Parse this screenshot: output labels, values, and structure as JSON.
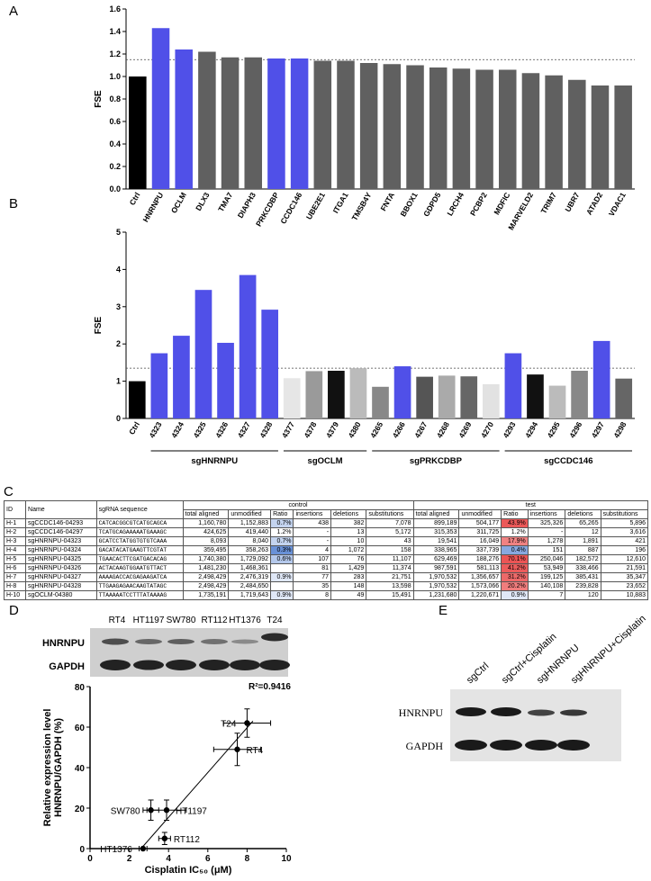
{
  "panel_labels": [
    "A",
    "B",
    "C",
    "D",
    "E"
  ],
  "chart_data": [
    {
      "type": "bar",
      "ylabel": "FSE",
      "categories": [
        "Ctrl",
        "HNRNPU",
        "OCLM",
        "DLX3",
        "TMA7",
        "DIAPH3",
        "PRKCDBP",
        "CCDC146",
        "UBE2E1",
        "ITGA1",
        "TMSB4Y",
        "FNTA",
        "BBOX1",
        "GDPD5",
        "LRCH4",
        "PCBP2",
        "MDFIC",
        "MARVELD2",
        "TRIM7",
        "UBR7",
        "ATAD2",
        "VDAC1"
      ],
      "values": [
        1.0,
        1.43,
        1.24,
        1.22,
        1.17,
        1.17,
        1.16,
        1.16,
        1.14,
        1.14,
        1.12,
        1.11,
        1.1,
        1.08,
        1.07,
        1.06,
        1.06,
        1.03,
        1.01,
        0.97,
        0.92,
        0.92
      ],
      "colors": [
        "#000000",
        "#5050e8",
        "#5050e8",
        "#606060",
        "#606060",
        "#606060",
        "#5050e8",
        "#5050e8",
        "#606060",
        "#606060",
        "#606060",
        "#606060",
        "#606060",
        "#606060",
        "#606060",
        "#606060",
        "#606060",
        "#606060",
        "#606060",
        "#606060",
        "#606060",
        "#606060"
      ],
      "ylim": [
        0,
        1.6
      ],
      "yticks": [
        {
          "value": 0,
          "label": "0.0"
        },
        0.2,
        0.4,
        0.6,
        0.8,
        {
          "value": 1,
          "label": "1.0"
        },
        1.2,
        1.4,
        1.6
      ],
      "reference_line": 1.15
    },
    {
      "type": "bar",
      "ylabel": "FSE",
      "groups": [
        {
          "categories": [
            "Ctrl"
          ],
          "values": [
            1.0
          ],
          "colors": [
            "#000000"
          ]
        },
        {
          "label": "sgHNRNPU",
          "categories": [
            "4323",
            "4324",
            "4325",
            "4326",
            "4327",
            "4328"
          ],
          "values": [
            1.75,
            2.22,
            3.45,
            2.03,
            3.85,
            2.92
          ],
          "colors": [
            "#5050e8",
            "#5050e8",
            "#5050e8",
            "#5050e8",
            "#5050e8",
            "#5050e8"
          ]
        },
        {
          "label": "sgOCLM",
          "categories": [
            "4377",
            "4378",
            "4379",
            "4380"
          ],
          "values": [
            1.08,
            1.27,
            1.28,
            1.35
          ],
          "colors": [
            "#e6e6e6",
            "#9a9a9a",
            "#111111",
            "#bbbbbb"
          ]
        },
        {
          "label": "sgPRKCDBP",
          "categories": [
            "4265",
            "4266",
            "4267",
            "4268",
            "4269",
            "4270"
          ],
          "values": [
            0.85,
            1.4,
            1.12,
            1.15,
            1.13,
            0.92
          ],
          "colors": [
            "#888888",
            "#5050e8",
            "#555555",
            "#aaaaaa",
            "#666666",
            "#e2e2e2"
          ]
        },
        {
          "label": "sgCCDC146",
          "categories": [
            "4293",
            "4294",
            "4295",
            "4296",
            "4297",
            "4298"
          ],
          "values": [
            1.75,
            1.18,
            0.88,
            1.28,
            2.08,
            1.07
          ],
          "colors": [
            "#5050e8",
            "#111111",
            "#bbbbbb",
            "#888888",
            "#5050e8",
            "#666666"
          ]
        }
      ],
      "ylim": [
        0,
        5
      ],
      "yticks": [
        0,
        1,
        2,
        3,
        4,
        5
      ],
      "reference_line": 1.35
    },
    {
      "type": "scatter",
      "xlabel": "Cisplatin IC₅₀ (μM)",
      "ylabel": [
        "Relative expression level",
        "HNRNPU/GAPDH (%)"
      ],
      "labels": [
        "T24",
        "RT4",
        "HT1197",
        "SW780",
        "RT112",
        "HT1376"
      ],
      "x": [
        8.0,
        7.5,
        3.9,
        3.1,
        3.8,
        2.7
      ],
      "values": [
        62,
        49,
        19,
        19,
        5,
        0
      ],
      "x_err": [
        1.2,
        1.2,
        1.0,
        0.4,
        0.3,
        0.2
      ],
      "y_err": [
        7,
        8,
        5,
        5,
        3,
        0
      ],
      "fit_line": {
        "x": [
          2.6,
          8.3
        ],
        "y": [
          0,
          63
        ]
      },
      "annotation": "R²=0.9416",
      "xlim": [
        0,
        10
      ],
      "xticks": [
        0,
        2,
        4,
        6,
        8,
        10
      ],
      "ylim": [
        0,
        80
      ],
      "yticks": [
        0,
        20,
        40,
        60,
        80
      ]
    }
  ],
  "table": {
    "headers": [
      "ID",
      "Name",
      "sgRNA sequence"
    ],
    "groups": [
      "control",
      "test"
    ],
    "subheaders": [
      "total aligned",
      "unmodified",
      "Ratio",
      "insertions",
      "deletions",
      "substitutions"
    ],
    "rows": [
      [
        "H-1",
        "sgCCDC146-04293",
        "CATCACGGCGTCATGCAGCA",
        "1,160,780",
        "1,152,883",
        "0.7%",
        "438",
        "382",
        "7,078",
        "899,189",
        "504,177",
        "43.9%",
        "325,326",
        "65,265",
        "5,896"
      ],
      [
        "H-2",
        "sgCCDC146-04297",
        "TCATGCAGAAAAATGAAAGC",
        "424,625",
        "419,440",
        "1.2%",
        "-",
        "13",
        "5,172",
        "315,353",
        "311,725",
        "1.2%",
        "-",
        "12",
        "3,616"
      ],
      [
        "H-3",
        "sgHNRNPU-04323",
        "GCATCCTATGGTGTGTCAAA",
        "8,093",
        "8,040",
        "0.7%",
        "-",
        "10",
        "43",
        "19,541",
        "16,049",
        "17.9%",
        "1,278",
        "1,891",
        "421"
      ],
      [
        "H-4",
        "sgHNRNPU-04324",
        "GACATACATGAAGTTCGTAT",
        "359,495",
        "358,263",
        "0.3%",
        "4",
        "1,072",
        "158",
        "338,965",
        "337,739",
        "0.4%",
        "151",
        "887",
        "196"
      ],
      [
        "H-5",
        "sgHNRNPU-04325",
        "TGAACACTTCGATGACACAG",
        "1,740,380",
        "1,729,092",
        "0.6%",
        "107",
        "76",
        "11,107",
        "629,469",
        "188,276",
        "70.1%",
        "250,046",
        "182,572",
        "12,610"
      ],
      [
        "H-6",
        "sgHNRNPU-04326",
        "ACTACAAGTGGAATGTTACT",
        "1,481,230",
        "1,468,361",
        null,
        "81",
        "1,429",
        "11,374",
        "987,591",
        "581,113",
        "41.2%",
        "53,949",
        "338,466",
        "21,591"
      ],
      [
        "H-7",
        "sgHNRNPU-04327",
        "AAAAGACCACGAGAAGATCA",
        "2,498,429",
        "2,476,319",
        "0.9%",
        "77",
        "283",
        "21,751",
        "1,970,532",
        "1,356,657",
        "31.2%",
        "199,125",
        "385,431",
        "35,347"
      ],
      [
        "H-8",
        "sgHNRNPU-04328",
        "TTGAAGAGAACAAGTATAGC",
        "2,498,429",
        "2,484,650",
        null,
        "35",
        "148",
        "13,598",
        "1,970,532",
        "1,573,066",
        "20.2%",
        "140,108",
        "239,828",
        "23,652"
      ],
      [
        "H-10",
        "sgOCLM-04380",
        "TTAAAAATCCTTTATAAAAG",
        "1,735,191",
        "1,719,643",
        "0.9%",
        "8",
        "49",
        "15,491",
        "1,231,680",
        "1,220,671",
        "0.9%",
        "7",
        "120",
        "10,883"
      ]
    ]
  },
  "blot_d": {
    "lanes": [
      "RT4",
      "HT1197",
      "SW780",
      "RT112",
      "HT1376",
      "T24"
    ],
    "rows": [
      "HNRNPU",
      "GAPDH"
    ]
  },
  "blot_e": {
    "lanes": [
      "sgCtrl",
      "sgCtrl+Cisplatin",
      "sgHNRNPU",
      "sgHNRNPU+Cisplatin"
    ],
    "rows": [
      "HNRNPU",
      "GAPDH"
    ]
  }
}
